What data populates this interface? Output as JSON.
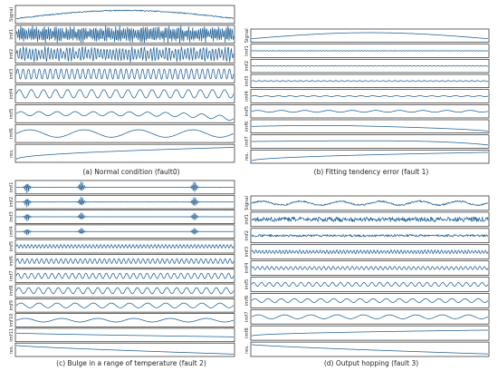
{
  "chart_data": [
    {
      "type": "line",
      "caption": "(a) Normal condition (fault0)",
      "rows": [
        {
          "label": "Signal",
          "shape": "hump",
          "amp": 0.8,
          "freq": 0,
          "noise": 0.2
        },
        {
          "label": "imf1",
          "shape": "bursty",
          "amp": 0.9,
          "freq": 110,
          "noise": 0.5
        },
        {
          "label": "imf2",
          "shape": "bursty",
          "amp": 0.8,
          "freq": 70,
          "noise": 0.4
        },
        {
          "label": "imf3",
          "shape": "osc",
          "amp": 0.6,
          "freq": 40,
          "noise": 0.1
        },
        {
          "label": "imf4",
          "shape": "osc",
          "amp": 0.5,
          "freq": 18,
          "noise": 0.05
        },
        {
          "label": "imf5",
          "shape": "dip",
          "amp": 0.5,
          "freq": 12,
          "noise": 0.05
        },
        {
          "label": "imf6",
          "shape": "osc",
          "amp": 0.45,
          "freq": 4,
          "noise": 0
        },
        {
          "label": "res.",
          "shape": "rise",
          "amp": 0.8,
          "freq": 0,
          "noise": 0
        }
      ]
    },
    {
      "type": "line",
      "caption": "(b) Fitting tendency error (fault 1)",
      "rows": [
        {
          "label": "Signal",
          "shape": "hump",
          "amp": 0.85,
          "freq": 0,
          "noise": 0.05
        },
        {
          "label": "imf1",
          "shape": "flat",
          "amp": 0.05,
          "freq": 80,
          "noise": 0.1
        },
        {
          "label": "imf2",
          "shape": "flat",
          "amp": 0.05,
          "freq": 60,
          "noise": 0.1
        },
        {
          "label": "imf3",
          "shape": "flat",
          "amp": 0.08,
          "freq": 40,
          "noise": 0.1
        },
        {
          "label": "imf4",
          "shape": "flat",
          "amp": 0.08,
          "freq": 20,
          "noise": 0.05
        },
        {
          "label": "imf5",
          "shape": "osc",
          "amp": 0.15,
          "freq": 10,
          "noise": 0.05
        },
        {
          "label": "imf6",
          "shape": "tail",
          "amp": 0.5,
          "freq": 6,
          "noise": 0
        },
        {
          "label": "imf7",
          "shape": "tail",
          "amp": 0.45,
          "freq": 3,
          "noise": 0
        },
        {
          "label": "res.",
          "shape": "rise",
          "amp": 0.8,
          "freq": 0,
          "noise": 0
        }
      ]
    },
    {
      "type": "line",
      "caption": "(c) Bulge in a range of temperature (fault 2)",
      "rows": [
        {
          "label": "imf1",
          "shape": "spikes",
          "amp": 0.95,
          "freq": 0,
          "noise": 0.05
        },
        {
          "label": "imf2",
          "shape": "spikes",
          "amp": 0.85,
          "freq": 0,
          "noise": 0.05
        },
        {
          "label": "imf3",
          "shape": "spikes",
          "amp": 0.7,
          "freq": 0,
          "noise": 0.05
        },
        {
          "label": "imf4",
          "shape": "spikes",
          "amp": 0.6,
          "freq": 0,
          "noise": 0.05
        },
        {
          "label": "imf5",
          "shape": "osc",
          "amp": 0.3,
          "freq": 60,
          "noise": 0.05
        },
        {
          "label": "imf6",
          "shape": "osc",
          "amp": 0.4,
          "freq": 45,
          "noise": 0.05
        },
        {
          "label": "imf7",
          "shape": "osc",
          "amp": 0.45,
          "freq": 32,
          "noise": 0.05
        },
        {
          "label": "imf8",
          "shape": "osc",
          "amp": 0.5,
          "freq": 22,
          "noise": 0.05
        },
        {
          "label": "imf9",
          "shape": "osc",
          "amp": 0.4,
          "freq": 12,
          "noise": 0
        },
        {
          "label": "imf10",
          "shape": "osc",
          "amp": 0.3,
          "freq": 6,
          "noise": 0
        },
        {
          "label": "imf11",
          "shape": "fall",
          "amp": 0.35,
          "freq": 0,
          "noise": 0
        },
        {
          "label": "res.",
          "shape": "fall",
          "amp": 0.8,
          "freq": 0,
          "noise": 0
        }
      ]
    },
    {
      "type": "line",
      "caption": "(d) Output hopping (fault 3)",
      "rows": [
        {
          "label": "Signal",
          "shape": "wavy",
          "amp": 0.5,
          "freq": 6,
          "noise": 0.25
        },
        {
          "label": "imf1",
          "shape": "noise",
          "amp": 0.4,
          "freq": 120,
          "noise": 0.6
        },
        {
          "label": "imf2",
          "shape": "noise",
          "amp": 0.3,
          "freq": 100,
          "noise": 0.4
        },
        {
          "label": "imf3",
          "shape": "osc",
          "amp": 0.25,
          "freq": 70,
          "noise": 0.2
        },
        {
          "label": "imf4",
          "shape": "osc",
          "amp": 0.25,
          "freq": 50,
          "noise": 0.1
        },
        {
          "label": "imf5",
          "shape": "osc",
          "amp": 0.3,
          "freq": 30,
          "noise": 0.05
        },
        {
          "label": "imf6",
          "shape": "osc",
          "amp": 0.3,
          "freq": 18,
          "noise": 0
        },
        {
          "label": "imf7",
          "shape": "osc",
          "amp": 0.3,
          "freq": 9,
          "noise": 0
        },
        {
          "label": "imf8",
          "shape": "rise",
          "amp": 0.5,
          "freq": 0,
          "noise": 0
        },
        {
          "label": "res.",
          "shape": "fall",
          "amp": 0.8,
          "freq": 0,
          "noise": 0
        }
      ]
    }
  ]
}
